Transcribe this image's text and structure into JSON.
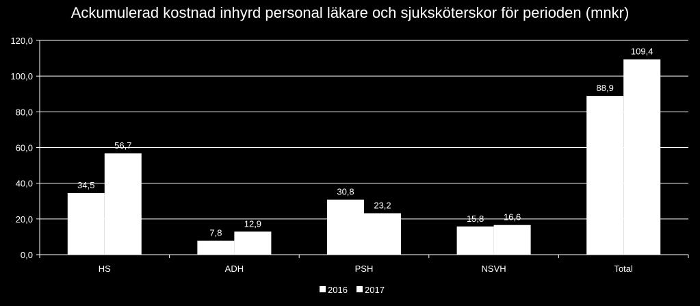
{
  "chart_data": {
    "type": "bar",
    "title": "Ackumulerad kostnad inhyrd personal läkare och sjuksköterskor för perioden (mnkr)",
    "categories": [
      "HS",
      "ADH",
      "PSH",
      "NSVH",
      "Total"
    ],
    "series": [
      {
        "name": "2016",
        "values": [
          34.5,
          7.8,
          30.8,
          15.8,
          88.9
        ],
        "labels": [
          "34,5",
          "7,8",
          "30,8",
          "15,8",
          "88,9"
        ]
      },
      {
        "name": "2017",
        "values": [
          56.7,
          12.9,
          23.2,
          16.6,
          109.4
        ],
        "labels": [
          "56,7",
          "12,9",
          "23,2",
          "16,6",
          "109,4"
        ]
      }
    ],
    "ylim": [
      0,
      120
    ],
    "yticks": [
      0,
      20,
      40,
      60,
      80,
      100,
      120
    ],
    "ytick_labels": [
      "0,0",
      "20,0",
      "40,0",
      "60,0",
      "80,0",
      "100,0",
      "120,0"
    ],
    "grid": true,
    "legend_position": "bottom",
    "colors": {
      "background": "#000000",
      "bar": "#ffffff",
      "grid": "#ffffff",
      "text": "#ffffff"
    }
  }
}
